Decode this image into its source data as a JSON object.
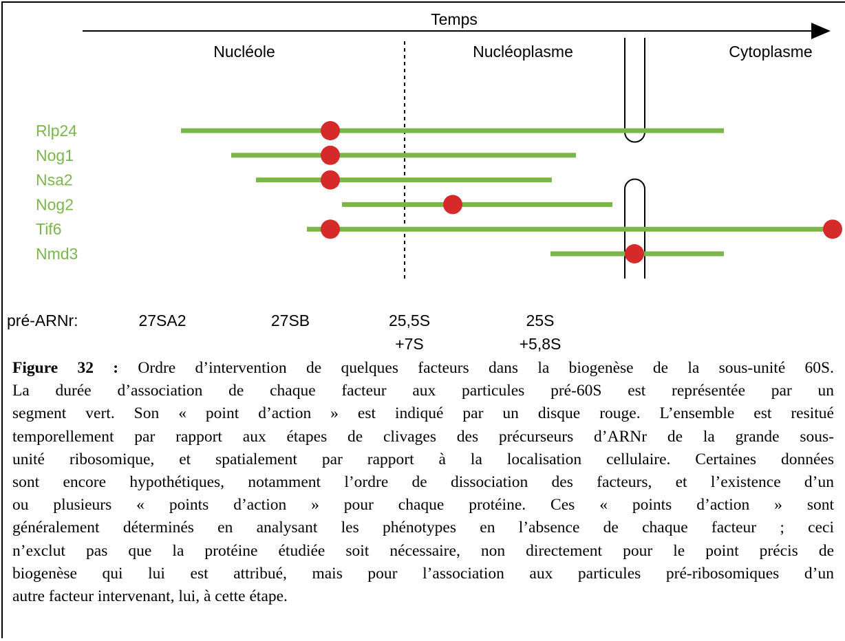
{
  "diagram": {
    "time_label": "Temps",
    "compartments": [
      "Nucléole",
      "Nucléoplasme",
      "Cytoplasme"
    ],
    "factors": [
      "Rlp24",
      "Nog1",
      "Nsa2",
      "Nog2",
      "Tif6",
      "Nmd3"
    ],
    "precursor_label": "pré-ARNr:",
    "precursors": [
      [
        "27SA2"
      ],
      [
        "27SB"
      ],
      [
        "25,5S",
        "+7S"
      ],
      [
        "25S",
        "+5,8S"
      ]
    ]
  },
  "caption": {
    "label": "Figure 32 :",
    "lines": [
      "Ordre d’intervention de quelques facteurs dans la biogenèse de la sous-unité 60S.",
      "La durée d’association de chaque facteur aux particules pré-60S est représentée par un",
      "segment vert. Son « point d’action » est indiqué par un disque rouge. L’ensemble est resitué",
      "temporellement par rapport aux étapes de clivages des précurseurs d’ARNr de la grande sous-",
      "unité ribosomique, et spatialement par rapport à la localisation cellulaire. Certaines données",
      "sont encore hypothétiques, notamment l’ordre de dissociation des facteurs, et l’existence d’un",
      "ou plusieurs « points d’action » pour chaque protéine. Ces « points d’action » sont",
      "généralement déterminés en analysant les phénotypes en l’absence de chaque facteur ; ceci",
      "n’exclut pas que la protéine étudiée soit nécessaire, non directement pour le point précis de",
      "biogenèse qui lui est attribué, mais pour l’association aux particules pré-ribosomiques d’un",
      "autre facteur intervenant, lui, à cette étape."
    ]
  }
}
